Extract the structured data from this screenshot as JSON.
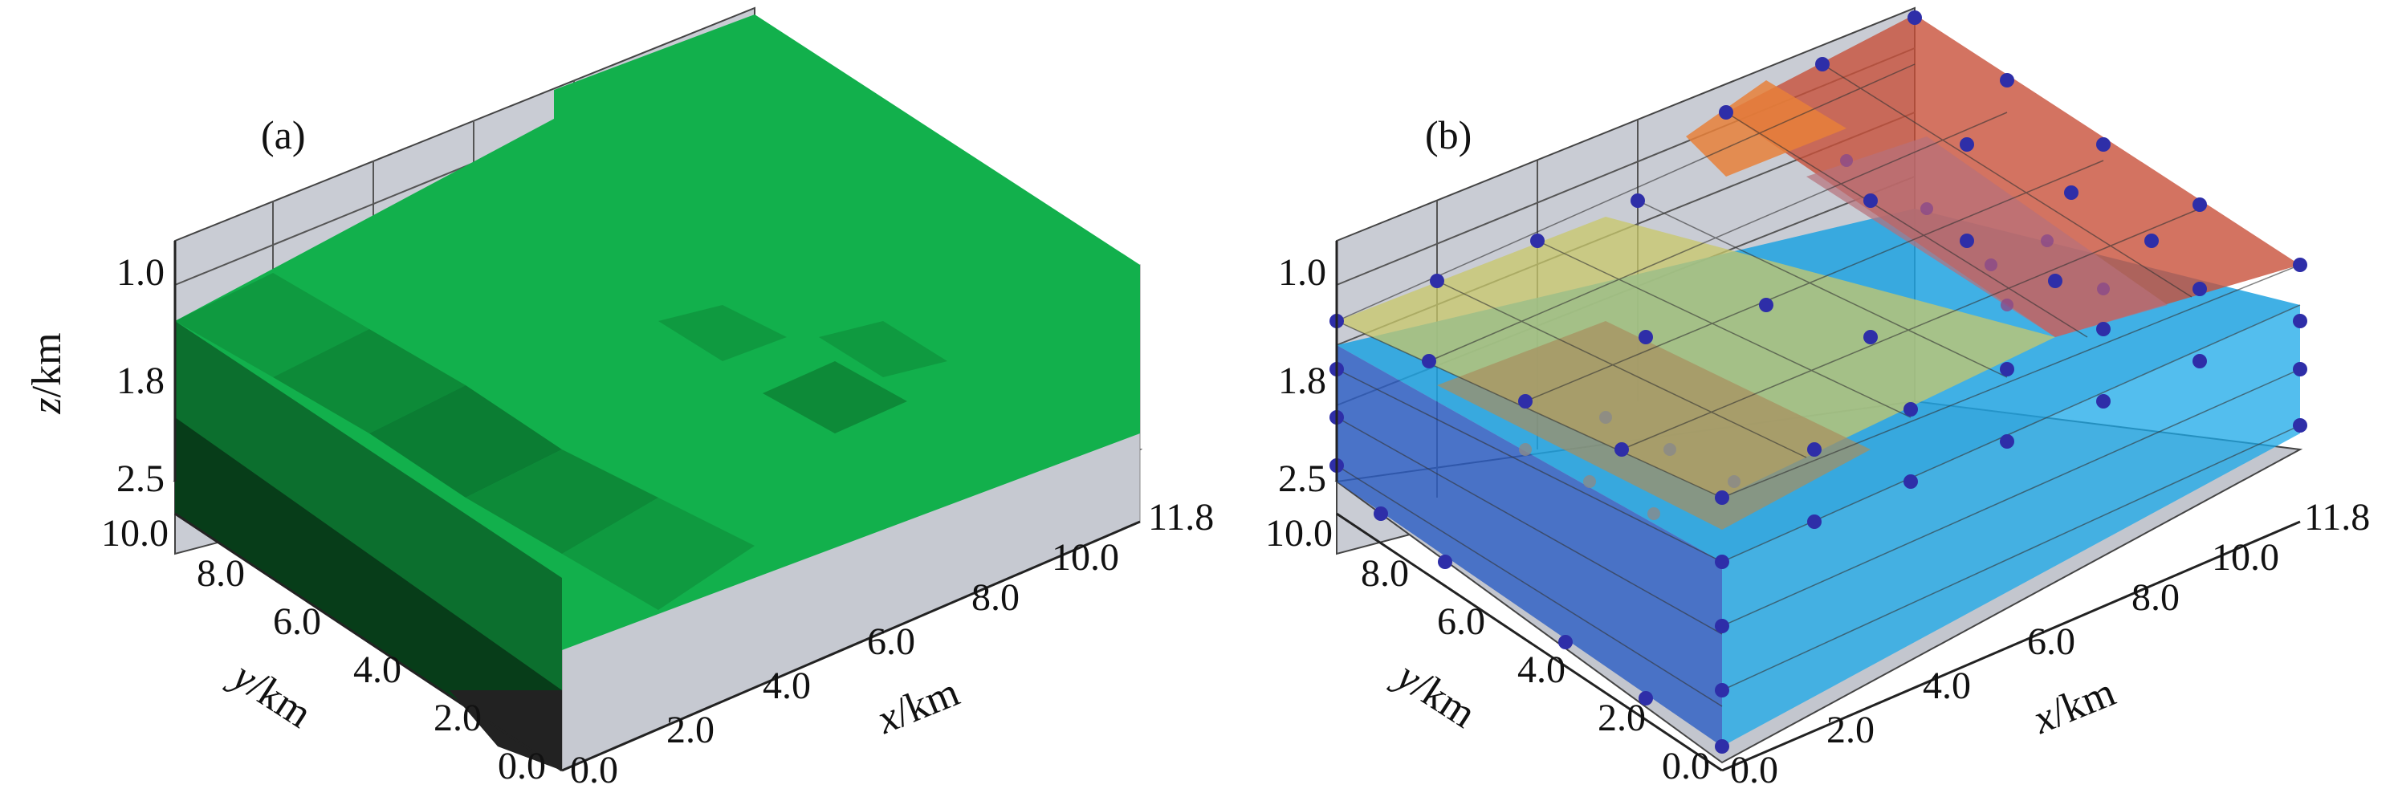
{
  "figure": {
    "panels": [
      {
        "id": "a",
        "label": "(a)",
        "z_axis": {
          "label_var": "z",
          "label_unit": "/km",
          "ticks": [
            "1.0",
            "1.8",
            "2.5"
          ]
        },
        "y_axis": {
          "label_var": "y",
          "label_unit": "/km",
          "ticks": [
            "10.0",
            "8.0",
            "6.0",
            "4.0",
            "2.0",
            "0.0"
          ]
        },
        "x_axis": {
          "label_var": "x",
          "label_unit": "/km",
          "ticks": [
            "0.0",
            "2.0",
            "4.0",
            "6.0",
            "8.0",
            "10.0",
            "11.8"
          ]
        }
      },
      {
        "id": "b",
        "label": "(b)",
        "z_axis": {
          "label_var": "z",
          "label_unit": "/km",
          "ticks": [
            "1.0",
            "1.8",
            "2.5"
          ]
        },
        "y_axis": {
          "label_var": "y",
          "label_unit": "/km",
          "ticks": [
            "10.0",
            "8.0",
            "6.0",
            "4.0",
            "2.0",
            "0.0"
          ]
        },
        "x_axis": {
          "label_var": "x",
          "label_unit": "/km",
          "ticks": [
            "0.0",
            "2.0",
            "4.0",
            "6.0",
            "8.0",
            "10.0",
            "11.8"
          ]
        }
      }
    ],
    "colors": {
      "pane": "#c9ccd4",
      "green_top": "#12b04c",
      "green_mid": "#0f8f3c",
      "green_dark": "#0b5e28",
      "node": "#2e2ea8",
      "inner_node": "#8a4a8a",
      "layer_blue": "#1fa2e0",
      "layer_yellow": "#c8c86a",
      "layer_red": "#c8503a"
    }
  }
}
